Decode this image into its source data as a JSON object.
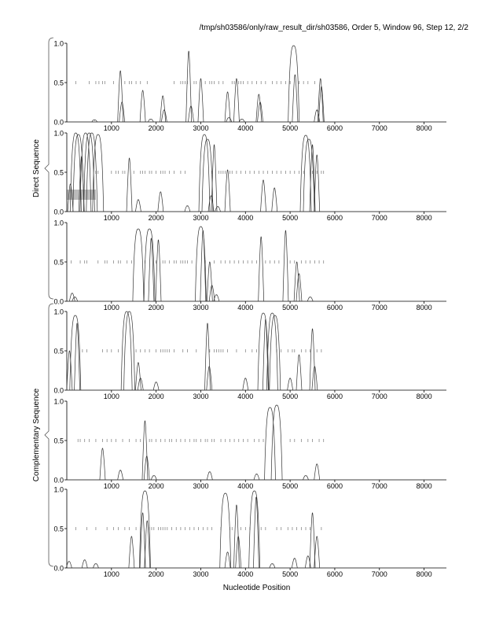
{
  "header": {
    "title": "/tmp/sh03586/only/raw_result_dir/sh03586, Order 5, Window 96, Step 12, 2/2"
  },
  "groups": [
    {
      "label": "Direct Sequence",
      "panels": [
        0,
        1,
        2
      ]
    },
    {
      "label": "Complementary Sequence",
      "panels": [
        3,
        4,
        5
      ]
    }
  ],
  "chart_data": {
    "type": "line",
    "xlabel": "Nucleotide Position",
    "xlim": [
      0,
      8500
    ],
    "ylim": [
      0,
      1
    ],
    "xticks": [
      1000,
      2000,
      3000,
      4000,
      5000,
      6000,
      7000,
      8000
    ],
    "yticks": [
      "0.0",
      "0.5",
      "1.0"
    ],
    "colors": {
      "line": "#333333",
      "orf_tick": "#777777",
      "highlight": "#bbbbbb"
    },
    "panels": [
      {
        "peaks": [
          [
            620,
            0.02
          ],
          [
            1200,
            0.65
          ],
          [
            1235,
            0.25
          ],
          [
            1700,
            0.4
          ],
          [
            1880,
            0.03
          ],
          [
            2150,
            0.33
          ],
          [
            2180,
            0.15
          ],
          [
            2730,
            0.9
          ],
          [
            2780,
            0.2
          ],
          [
            3000,
            0.55
          ],
          [
            3600,
            0.38
          ],
          [
            3630,
            0.05
          ],
          [
            3800,
            0.55
          ],
          [
            3920,
            0.03
          ],
          [
            4300,
            0.35
          ],
          [
            4330,
            0.25
          ],
          [
            5080,
            0.97
          ],
          [
            5110,
            0.6
          ],
          [
            5600,
            0.15
          ],
          [
            5680,
            0.55
          ],
          [
            5700,
            0.45
          ]
        ],
        "orf_ticks": [
          200,
          500,
          650,
          720,
          800,
          850,
          1050,
          1300,
          1400,
          1450,
          1550,
          1650,
          1800,
          2400,
          2550,
          2600,
          2650,
          2700,
          2850,
          2900,
          3100,
          3200,
          3250,
          3300,
          3400,
          3500,
          3700,
          3750,
          3850,
          3900,
          3950,
          4050,
          4150,
          4250,
          4350,
          4450,
          4600,
          4700,
          4800,
          4900,
          5000,
          5200,
          5300,
          5400,
          5550
        ]
      },
      {
        "peaks": [
          [
            80,
            0.35
          ],
          [
            200,
            1.0
          ],
          [
            260,
            0.98
          ],
          [
            330,
            0.7
          ],
          [
            420,
            1.0
          ],
          [
            500,
            1.0
          ],
          [
            560,
            1.0
          ],
          [
            700,
            0.98
          ],
          [
            1400,
            0.68
          ],
          [
            1600,
            0.15
          ],
          [
            2100,
            0.25
          ],
          [
            2700,
            0.07
          ],
          [
            3080,
            0.98
          ],
          [
            3150,
            0.92
          ],
          [
            3230,
            0.2
          ],
          [
            3300,
            0.85
          ],
          [
            3380,
            0.06
          ],
          [
            3600,
            0.53
          ],
          [
            4400,
            0.4
          ],
          [
            4650,
            0.3
          ],
          [
            5350,
            0.97
          ],
          [
            5420,
            0.92
          ],
          [
            5500,
            0.85
          ],
          [
            5600,
            0.72
          ]
        ],
        "orf_ticks": [
          650,
          700,
          1000,
          1100,
          1150,
          1250,
          1300,
          1500,
          1650,
          1700,
          1750,
          1850,
          1900,
          2000,
          2100,
          2150,
          2200,
          2300,
          2400,
          2550,
          2650,
          3250,
          3400,
          3450,
          3500,
          3550,
          3650,
          3700,
          3800,
          3900,
          4000,
          4100,
          4200,
          4300,
          4400,
          4500,
          4600,
          4700,
          4800,
          4900,
          5000,
          5100,
          5200,
          5300,
          5500,
          5600,
          5700,
          5750
        ],
        "highlight": [
          0,
          650,
          0.15,
          0.28
        ]
      },
      {
        "peaks": [
          [
            120,
            0.1
          ],
          [
            180,
            0.05
          ],
          [
            1600,
            0.92
          ],
          [
            1850,
            0.92
          ],
          [
            1890,
            0.8
          ],
          [
            2050,
            0.78
          ],
          [
            3000,
            0.95
          ],
          [
            3050,
            0.9
          ],
          [
            3200,
            0.5
          ],
          [
            3250,
            0.2
          ],
          [
            3350,
            0.08
          ],
          [
            4350,
            0.82
          ],
          [
            4900,
            0.9
          ],
          [
            5150,
            0.5
          ],
          [
            5200,
            0.35
          ],
          [
            5450,
            0.05
          ]
        ],
        "orf_ticks": [
          100,
          300,
          400,
          450,
          700,
          850,
          900,
          1050,
          1150,
          1200,
          1350,
          1450,
          1750,
          2000,
          2150,
          2200,
          2300,
          2400,
          2450,
          2550,
          2600,
          2650,
          2700,
          2800,
          3100,
          3300,
          3450,
          3550,
          3650,
          3750,
          3850,
          3950,
          4050,
          4150,
          4250,
          4450,
          4550,
          4650,
          4750,
          5000,
          5100,
          5250,
          5350,
          5450,
          5550,
          5650,
          5750
        ]
      },
      {
        "peaks": [
          [
            60,
            0.5
          ],
          [
            190,
            0.95
          ],
          [
            230,
            0.85
          ],
          [
            1340,
            1.0
          ],
          [
            1400,
            1.0
          ],
          [
            1600,
            0.35
          ],
          [
            1650,
            0.15
          ],
          [
            2000,
            0.1
          ],
          [
            3150,
            0.85
          ],
          [
            3190,
            0.3
          ],
          [
            4000,
            0.15
          ],
          [
            4400,
            0.98
          ],
          [
            4450,
            0.9
          ],
          [
            4600,
            0.98
          ],
          [
            4660,
            0.95
          ],
          [
            5000,
            0.15
          ],
          [
            5200,
            0.45
          ],
          [
            5500,
            0.78
          ],
          [
            5550,
            0.3
          ]
        ],
        "orf_ticks": [
          350,
          450,
          800,
          900,
          1000,
          1150,
          1550,
          1650,
          1750,
          1850,
          2000,
          2100,
          2150,
          2200,
          2250,
          2300,
          2400,
          2600,
          2700,
          2900,
          3200,
          3300,
          3350,
          3400,
          3450,
          3500,
          3600,
          3800,
          4000,
          4150,
          4250,
          4700,
          4800,
          4950,
          5050,
          5100,
          5250,
          5350,
          5450,
          5600,
          5700
        ]
      },
      {
        "peaks": [
          [
            800,
            0.4
          ],
          [
            1200,
            0.12
          ],
          [
            1750,
            0.75
          ],
          [
            1790,
            0.3
          ],
          [
            1950,
            0.05
          ],
          [
            3200,
            0.1
          ],
          [
            4250,
            0.07
          ],
          [
            4550,
            0.92
          ],
          [
            4700,
            0.95
          ],
          [
            5350,
            0.05
          ],
          [
            5600,
            0.2
          ]
        ],
        "orf_ticks": [
          250,
          300,
          400,
          500,
          650,
          800,
          900,
          1000,
          1100,
          1250,
          1400,
          1550,
          1650,
          1850,
          1900,
          2000,
          2100,
          2200,
          2300,
          2350,
          2450,
          2550,
          2650,
          2750,
          2850,
          2900,
          3000,
          3100,
          3150,
          3250,
          3300,
          3450,
          3550,
          3650,
          3750,
          3850,
          3950,
          4050,
          4200,
          4300,
          4400,
          5000,
          5100,
          5250,
          5400,
          5500,
          5650,
          5750
        ]
      },
      {
        "peaks": [
          [
            50,
            0.08
          ],
          [
            400,
            0.1
          ],
          [
            650,
            0.05
          ],
          [
            1450,
            0.4
          ],
          [
            1700,
            0.7
          ],
          [
            1750,
            0.98
          ],
          [
            1800,
            0.6
          ],
          [
            3550,
            0.95
          ],
          [
            3600,
            0.2
          ],
          [
            3800,
            0.8
          ],
          [
            3840,
            0.4
          ],
          [
            4200,
            0.98
          ],
          [
            4240,
            0.9
          ],
          [
            4600,
            0.05
          ],
          [
            5100,
            0.12
          ],
          [
            5400,
            0.15
          ],
          [
            5500,
            0.7
          ],
          [
            5600,
            0.4
          ]
        ],
        "orf_ticks": [
          200,
          450,
          650,
          900,
          1050,
          1150,
          1300,
          1400,
          1550,
          1650,
          1850,
          1900,
          1950,
          2050,
          2100,
          2150,
          2200,
          2250,
          2350,
          2450,
          2550,
          2650,
          2750,
          2850,
          2950,
          3050,
          3150,
          3250,
          3450,
          3650,
          3700,
          3900,
          4000,
          4100,
          4350,
          4450,
          4700,
          4800,
          4950,
          5050,
          5150,
          5250,
          5350,
          5450,
          5700
        ]
      }
    ]
  }
}
